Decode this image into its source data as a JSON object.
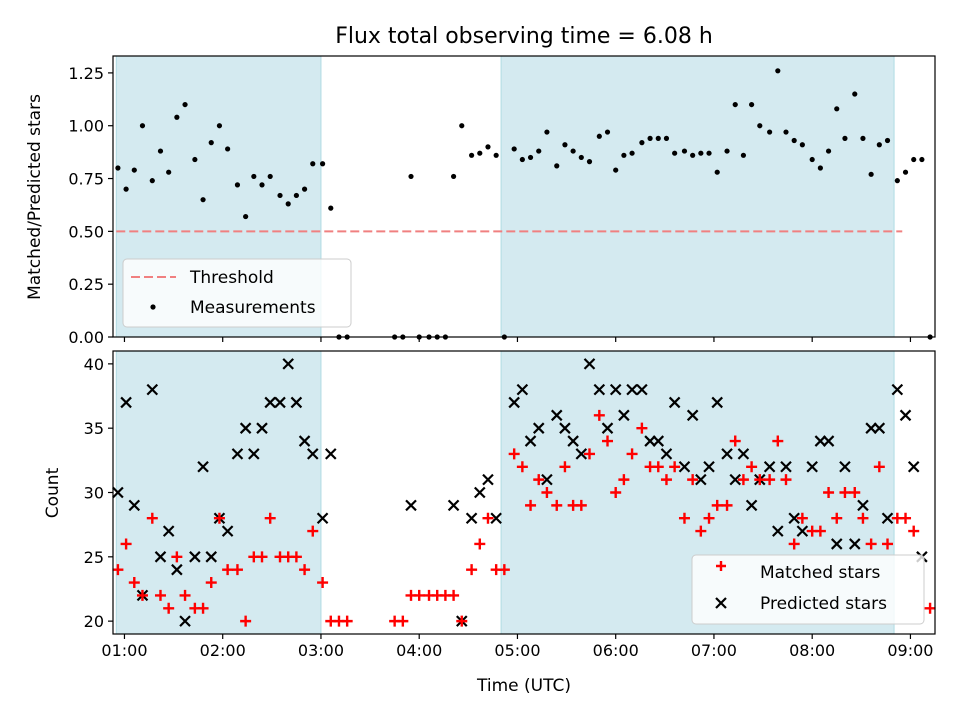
{
  "chart_data": {
    "title": "Flux total observing time = 6.08 h",
    "xlabel": "Time (UTC)",
    "x_ticks": [
      "01:00",
      "02:00",
      "03:00",
      "04:00",
      "05:00",
      "06:00",
      "07:00",
      "08:00",
      "09:00"
    ],
    "colors": {
      "band": "#d4eaf0",
      "threshold": "#f08080",
      "matched": "#ff0000",
      "predicted": "#000000",
      "measurement": "#000000"
    },
    "top": {
      "type": "scatter",
      "ylabel": "Matched/Predicted stars",
      "ylim": [
        0,
        1.33
      ],
      "y_ticks": [
        "0.00",
        "0.25",
        "0.50",
        "0.75",
        "1.00",
        "1.25"
      ],
      "legend_position": "lower-left",
      "legend": [
        "Threshold",
        "Measurements"
      ],
      "threshold": {
        "value": 0.5,
        "x_start": "00:55",
        "x_end": "08:55"
      },
      "measurements": [
        [
          "00:56",
          0.8
        ],
        [
          "01:01",
          0.7
        ],
        [
          "01:06",
          0.79
        ],
        [
          "01:11",
          1.0
        ],
        [
          "01:17",
          0.74
        ],
        [
          "01:22",
          0.88
        ],
        [
          "01:27",
          0.78
        ],
        [
          "01:32",
          1.04
        ],
        [
          "01:37",
          1.1
        ],
        [
          "01:43",
          0.84
        ],
        [
          "01:48",
          0.65
        ],
        [
          "01:53",
          0.92
        ],
        [
          "01:58",
          1.0
        ],
        [
          "02:03",
          0.89
        ],
        [
          "02:09",
          0.72
        ],
        [
          "02:14",
          0.57
        ],
        [
          "02:19",
          0.76
        ],
        [
          "02:24",
          0.72
        ],
        [
          "02:29",
          0.76
        ],
        [
          "02:35",
          0.67
        ],
        [
          "02:40",
          0.63
        ],
        [
          "02:45",
          0.67
        ],
        [
          "02:50",
          0.7
        ],
        [
          "02:55",
          0.82
        ],
        [
          "03:01",
          0.82
        ],
        [
          "03:06",
          0.61
        ],
        [
          "03:11",
          0.0
        ],
        [
          "03:16",
          0.0
        ],
        [
          "03:45",
          0.0
        ],
        [
          "03:50",
          0.0
        ],
        [
          "03:55",
          0.76
        ],
        [
          "04:00",
          0.0
        ],
        [
          "04:06",
          0.0
        ],
        [
          "04:11",
          0.0
        ],
        [
          "04:16",
          0.0
        ],
        [
          "04:21",
          0.76
        ],
        [
          "04:26",
          1.0
        ],
        [
          "04:32",
          0.86
        ],
        [
          "04:37",
          0.87
        ],
        [
          "04:42",
          0.9
        ],
        [
          "04:47",
          0.86
        ],
        [
          "04:52",
          0.0
        ],
        [
          "04:58",
          0.89
        ],
        [
          "05:03",
          0.84
        ],
        [
          "05:08",
          0.85
        ],
        [
          "05:13",
          0.88
        ],
        [
          "05:18",
          0.97
        ],
        [
          "05:24",
          0.81
        ],
        [
          "05:29",
          0.91
        ],
        [
          "05:34",
          0.88
        ],
        [
          "05:39",
          0.85
        ],
        [
          "05:44",
          0.83
        ],
        [
          "05:50",
          0.95
        ],
        [
          "05:55",
          0.97
        ],
        [
          "06:00",
          0.79
        ],
        [
          "06:05",
          0.86
        ],
        [
          "06:10",
          0.87
        ],
        [
          "06:16",
          0.92
        ],
        [
          "06:21",
          0.94
        ],
        [
          "06:26",
          0.94
        ],
        [
          "06:31",
          0.94
        ],
        [
          "06:36",
          0.87
        ],
        [
          "06:42",
          0.88
        ],
        [
          "06:47",
          0.86
        ],
        [
          "06:52",
          0.87
        ],
        [
          "06:57",
          0.87
        ],
        [
          "07:02",
          0.78
        ],
        [
          "07:08",
          0.88
        ],
        [
          "07:13",
          1.1
        ],
        [
          "07:18",
          0.86
        ],
        [
          "07:23",
          1.1
        ],
        [
          "07:28",
          1.0
        ],
        [
          "07:34",
          0.97
        ],
        [
          "07:39",
          1.26
        ],
        [
          "07:44",
          0.97
        ],
        [
          "07:49",
          0.93
        ],
        [
          "07:54",
          0.91
        ],
        [
          "08:00",
          0.84
        ],
        [
          "08:05",
          0.8
        ],
        [
          "08:10",
          0.88
        ],
        [
          "08:15",
          1.08
        ],
        [
          "08:20",
          0.94
        ],
        [
          "08:26",
          1.15
        ],
        [
          "08:31",
          0.94
        ],
        [
          "08:36",
          0.77
        ],
        [
          "08:41",
          0.91
        ],
        [
          "08:46",
          0.93
        ],
        [
          "08:52",
          0.74
        ],
        [
          "08:57",
          0.78
        ],
        [
          "09:02",
          0.84
        ],
        [
          "09:07",
          0.84
        ],
        [
          "09:12",
          0.0
        ]
      ]
    },
    "bottom": {
      "type": "scatter",
      "ylabel": "Count",
      "ylim": [
        19,
        41
      ],
      "y_ticks": [
        "20",
        "25",
        "30",
        "35",
        "40"
      ],
      "legend_position": "lower-right",
      "legend": [
        "Matched stars",
        "Predicted stars"
      ],
      "matched": [
        [
          "00:56",
          24
        ],
        [
          "01:01",
          26
        ],
        [
          "01:06",
          23
        ],
        [
          "01:11",
          22
        ],
        [
          "01:17",
          28
        ],
        [
          "01:22",
          22
        ],
        [
          "01:27",
          21
        ],
        [
          "01:32",
          25
        ],
        [
          "01:37",
          22
        ],
        [
          "01:43",
          21
        ],
        [
          "01:48",
          21
        ],
        [
          "01:53",
          23
        ],
        [
          "01:58",
          28
        ],
        [
          "02:03",
          24
        ],
        [
          "02:09",
          24
        ],
        [
          "02:14",
          20
        ],
        [
          "02:19",
          25
        ],
        [
          "02:24",
          25
        ],
        [
          "02:29",
          28
        ],
        [
          "02:35",
          25
        ],
        [
          "02:40",
          25
        ],
        [
          "02:45",
          25
        ],
        [
          "02:50",
          24
        ],
        [
          "02:55",
          27
        ],
        [
          "03:01",
          23
        ],
        [
          "03:06",
          20
        ],
        [
          "03:11",
          20
        ],
        [
          "03:16",
          20
        ],
        [
          "03:45",
          20
        ],
        [
          "03:50",
          20
        ],
        [
          "03:55",
          22
        ],
        [
          "04:00",
          22
        ],
        [
          "04:06",
          22
        ],
        [
          "04:11",
          22
        ],
        [
          "04:16",
          22
        ],
        [
          "04:21",
          22
        ],
        [
          "04:26",
          20
        ],
        [
          "04:32",
          24
        ],
        [
          "04:37",
          26
        ],
        [
          "04:42",
          28
        ],
        [
          "04:47",
          24
        ],
        [
          "04:52",
          24
        ],
        [
          "04:58",
          33
        ],
        [
          "05:03",
          32
        ],
        [
          "05:08",
          29
        ],
        [
          "05:13",
          31
        ],
        [
          "05:18",
          30
        ],
        [
          "05:24",
          29
        ],
        [
          "05:29",
          32
        ],
        [
          "05:34",
          29
        ],
        [
          "05:39",
          29
        ],
        [
          "05:44",
          33
        ],
        [
          "05:50",
          36
        ],
        [
          "05:55",
          34
        ],
        [
          "06:00",
          30
        ],
        [
          "06:05",
          31
        ],
        [
          "06:10",
          33
        ],
        [
          "06:16",
          35
        ],
        [
          "06:21",
          32
        ],
        [
          "06:26",
          32
        ],
        [
          "06:31",
          31
        ],
        [
          "06:36",
          32
        ],
        [
          "06:42",
          28
        ],
        [
          "06:47",
          31
        ],
        [
          "06:52",
          27
        ],
        [
          "06:57",
          28
        ],
        [
          "07:02",
          29
        ],
        [
          "07:08",
          29
        ],
        [
          "07:13",
          34
        ],
        [
          "07:18",
          31
        ],
        [
          "07:23",
          32
        ],
        [
          "07:28",
          31
        ],
        [
          "07:34",
          31
        ],
        [
          "07:39",
          34
        ],
        [
          "07:44",
          31
        ],
        [
          "07:49",
          26
        ],
        [
          "07:54",
          28
        ],
        [
          "08:00",
          27
        ],
        [
          "08:05",
          27
        ],
        [
          "08:10",
          30
        ],
        [
          "08:15",
          28
        ],
        [
          "08:20",
          30
        ],
        [
          "08:26",
          30
        ],
        [
          "08:31",
          28
        ],
        [
          "08:36",
          26
        ],
        [
          "08:41",
          32
        ],
        [
          "08:46",
          26
        ],
        [
          "08:52",
          28
        ],
        [
          "08:57",
          28
        ],
        [
          "09:02",
          27
        ],
        [
          "09:12",
          21
        ]
      ],
      "predicted": [
        [
          "00:56",
          30
        ],
        [
          "01:01",
          37
        ],
        [
          "01:06",
          29
        ],
        [
          "01:11",
          22
        ],
        [
          "01:17",
          38
        ],
        [
          "01:22",
          25
        ],
        [
          "01:27",
          27
        ],
        [
          "01:32",
          24
        ],
        [
          "01:37",
          20
        ],
        [
          "01:43",
          25
        ],
        [
          "01:48",
          32
        ],
        [
          "01:53",
          25
        ],
        [
          "01:58",
          28
        ],
        [
          "02:03",
          27
        ],
        [
          "02:09",
          33
        ],
        [
          "02:14",
          35
        ],
        [
          "02:19",
          33
        ],
        [
          "02:24",
          35
        ],
        [
          "02:29",
          37
        ],
        [
          "02:35",
          37
        ],
        [
          "02:40",
          40
        ],
        [
          "02:45",
          37
        ],
        [
          "02:50",
          34
        ],
        [
          "02:55",
          33
        ],
        [
          "03:01",
          28
        ],
        [
          "03:06",
          33
        ],
        [
          "03:55",
          29
        ],
        [
          "04:21",
          29
        ],
        [
          "04:26",
          20
        ],
        [
          "04:32",
          28
        ],
        [
          "04:37",
          30
        ],
        [
          "04:42",
          31
        ],
        [
          "04:47",
          28
        ],
        [
          "04:58",
          37
        ],
        [
          "05:03",
          38
        ],
        [
          "05:08",
          34
        ],
        [
          "05:13",
          35
        ],
        [
          "05:18",
          31
        ],
        [
          "05:24",
          36
        ],
        [
          "05:29",
          35
        ],
        [
          "05:34",
          34
        ],
        [
          "05:39",
          33
        ],
        [
          "05:44",
          40
        ],
        [
          "05:50",
          38
        ],
        [
          "05:55",
          35
        ],
        [
          "06:00",
          38
        ],
        [
          "06:05",
          36
        ],
        [
          "06:10",
          38
        ],
        [
          "06:16",
          38
        ],
        [
          "06:21",
          34
        ],
        [
          "06:26",
          34
        ],
        [
          "06:31",
          33
        ],
        [
          "06:36",
          37
        ],
        [
          "06:42",
          32
        ],
        [
          "06:47",
          36
        ],
        [
          "06:52",
          31
        ],
        [
          "06:57",
          32
        ],
        [
          "07:02",
          37
        ],
        [
          "07:08",
          33
        ],
        [
          "07:13",
          31
        ],
        [
          "07:18",
          33
        ],
        [
          "07:23",
          29
        ],
        [
          "07:28",
          31
        ],
        [
          "07:34",
          32
        ],
        [
          "07:39",
          27
        ],
        [
          "07:44",
          32
        ],
        [
          "07:49",
          28
        ],
        [
          "07:54",
          27
        ],
        [
          "08:00",
          32
        ],
        [
          "08:05",
          34
        ],
        [
          "08:10",
          34
        ],
        [
          "08:15",
          26
        ],
        [
          "08:20",
          32
        ],
        [
          "08:26",
          26
        ],
        [
          "08:31",
          29
        ],
        [
          "08:36",
          35
        ],
        [
          "08:41",
          35
        ],
        [
          "08:46",
          28
        ],
        [
          "08:52",
          38
        ],
        [
          "08:57",
          36
        ],
        [
          "09:02",
          32
        ],
        [
          "09:07",
          25
        ]
      ]
    },
    "observing_windows": [
      [
        "00:55",
        "03:00"
      ],
      [
        "04:50",
        "08:50"
      ]
    ]
  }
}
